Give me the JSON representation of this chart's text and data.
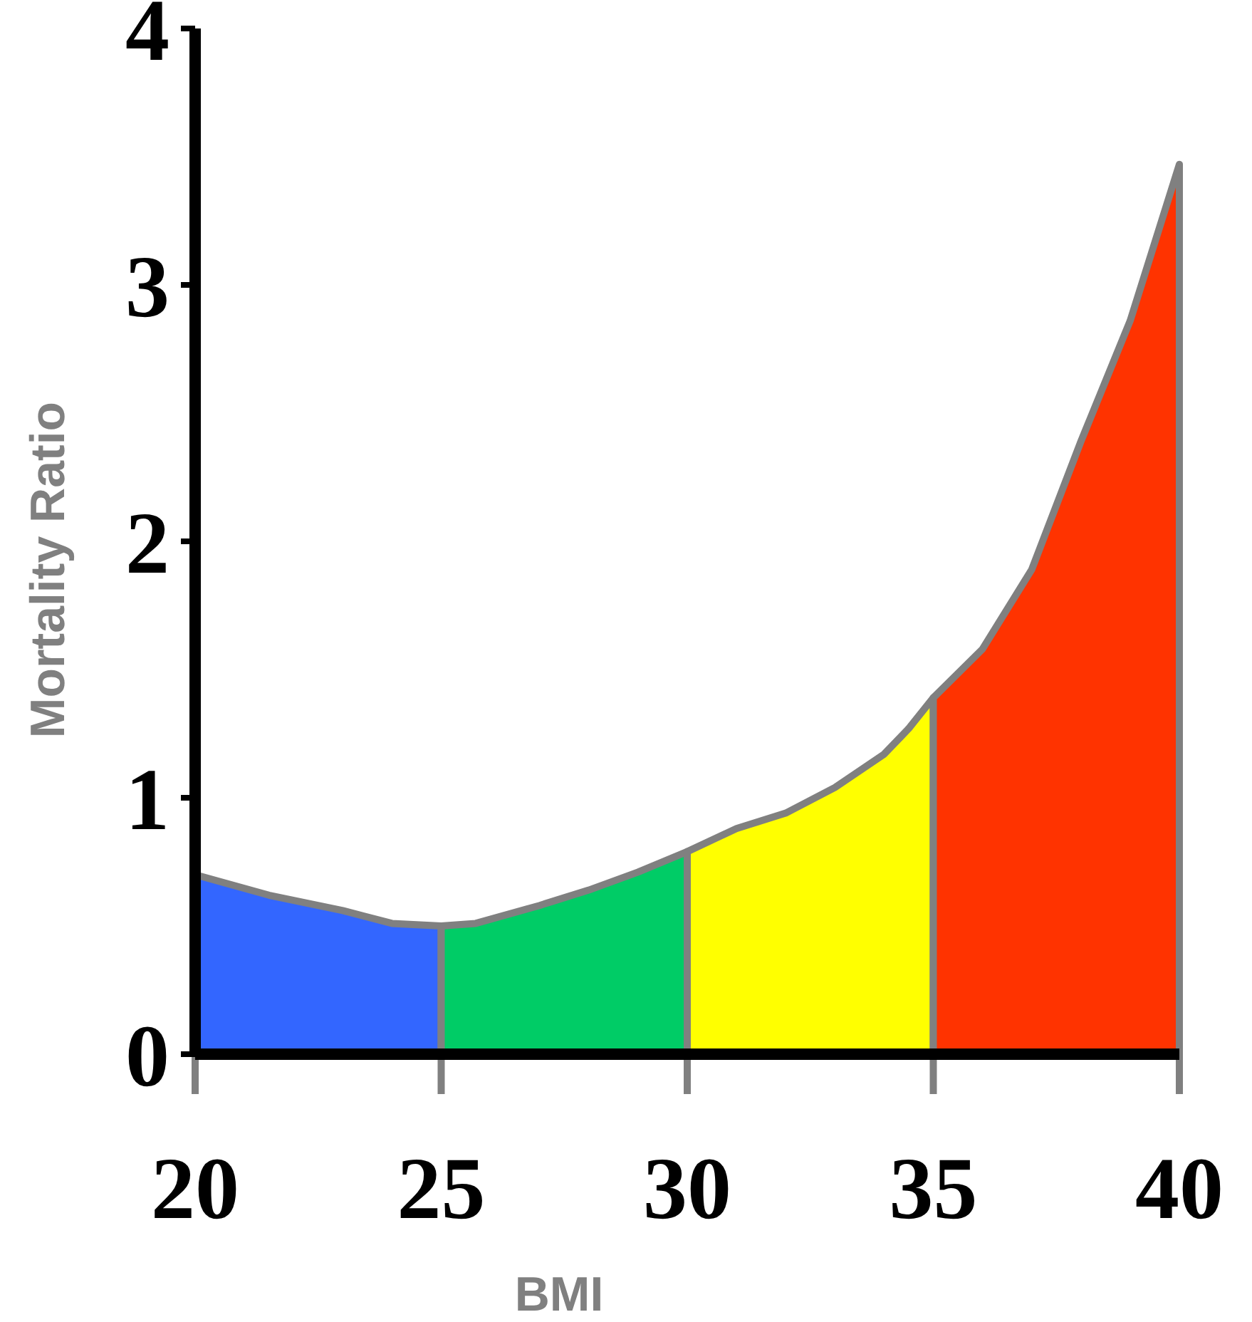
{
  "chart_data": {
    "type": "area",
    "xlabel": "BMI",
    "ylabel": "Mortality Ratio",
    "xlim": [
      20,
      40
    ],
    "ylim": [
      0,
      4
    ],
    "xticks": [
      20,
      25,
      30,
      35,
      40
    ],
    "yticks": [
      0,
      1,
      2,
      3,
      4
    ],
    "grid": false,
    "series": [
      {
        "color": "#3366ff",
        "x": [
          20,
          21.5,
          23,
          24,
          25
        ],
        "values": [
          0.7,
          0.62,
          0.56,
          0.51,
          0.5
        ]
      },
      {
        "color": "#00cc66",
        "x": [
          25,
          25.7,
          27,
          28,
          29,
          30
        ],
        "values": [
          0.5,
          0.51,
          0.58,
          0.64,
          0.71,
          0.79
        ]
      },
      {
        "color": "#ffff00",
        "x": [
          30,
          31,
          32,
          33,
          34,
          34.5,
          35
        ],
        "values": [
          0.79,
          0.88,
          0.94,
          1.04,
          1.17,
          1.27,
          1.39
        ]
      },
      {
        "color": "#ff3300",
        "x": [
          35,
          36,
          37,
          38,
          39,
          40
        ],
        "values": [
          1.39,
          1.58,
          1.89,
          2.39,
          2.86,
          3.47
        ]
      }
    ]
  }
}
